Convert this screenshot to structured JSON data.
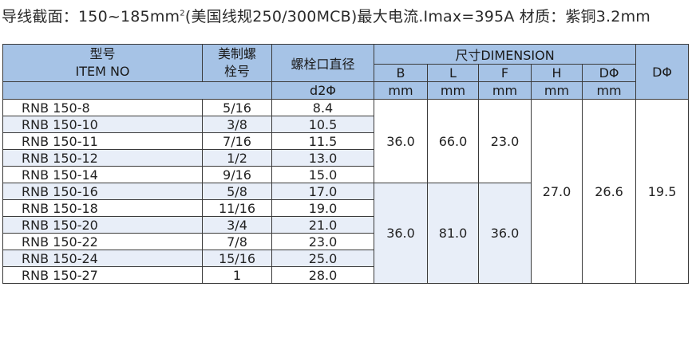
{
  "heading": {
    "prefix": "导线截面：150~185mm",
    "sup": "2",
    "suffix": "(美国线规250/300MCB)最大电流.Imax=395A   材质：紫铜3.2mm"
  },
  "table": {
    "header": {
      "model_cn": "型号",
      "model_en": "ITEM NO",
      "us_thread_line1": "美制螺",
      "us_thread_line2": "栓号",
      "bolt_dia": "螺栓口直径",
      "bolt_dia_symbol": "d2Φ",
      "dimension": "尺寸DIMENSION",
      "col_b": "B",
      "col_l": "L",
      "col_f": "F",
      "col_h": "H",
      "col_d1": "DΦ",
      "col_d2": "DΦ",
      "unit_b": "mm",
      "unit_l": "mm",
      "unit_f": "mm",
      "unit_h": "mm",
      "unit_d1": "mm"
    },
    "rows": [
      {
        "item": "RNB 150-8",
        "thread": "5/16",
        "d2": "8.4"
      },
      {
        "item": "RNB 150-10",
        "thread": "3/8",
        "d2": "10.5"
      },
      {
        "item": "RNB 150-11",
        "thread": "7/16",
        "d2": "11.5"
      },
      {
        "item": "RNB 150-12",
        "thread": "1/2",
        "d2": "13.0"
      },
      {
        "item": "RNB 150-14",
        "thread": "9/16",
        "d2": "15.0"
      },
      {
        "item": "RNB 150-16",
        "thread": "5/8",
        "d2": "17.0"
      },
      {
        "item": "RNB 150-18",
        "thread": "11/16",
        "d2": "19.0"
      },
      {
        "item": "RNB 150-20",
        "thread": "3/4",
        "d2": "21.0"
      },
      {
        "item": "RNB 150-22",
        "thread": "7/8",
        "d2": "23.0"
      },
      {
        "item": "RNB 150-24",
        "thread": "15/16",
        "d2": "25.0"
      },
      {
        "item": "RNB 150-27",
        "thread": "1",
        "d2": "28.0"
      }
    ],
    "group1": {
      "b": "36.0",
      "l": "66.0",
      "f": "23.0"
    },
    "group2": {
      "b": "36.0",
      "l": "81.0",
      "f": "36.0"
    },
    "shared": {
      "h": "27.0",
      "d1": "26.6",
      "d2": "19.5"
    }
  },
  "colors": {
    "header_fill": "#a6c3e6",
    "row_tint": "#e8eef8",
    "border": "#3a3a3a"
  }
}
